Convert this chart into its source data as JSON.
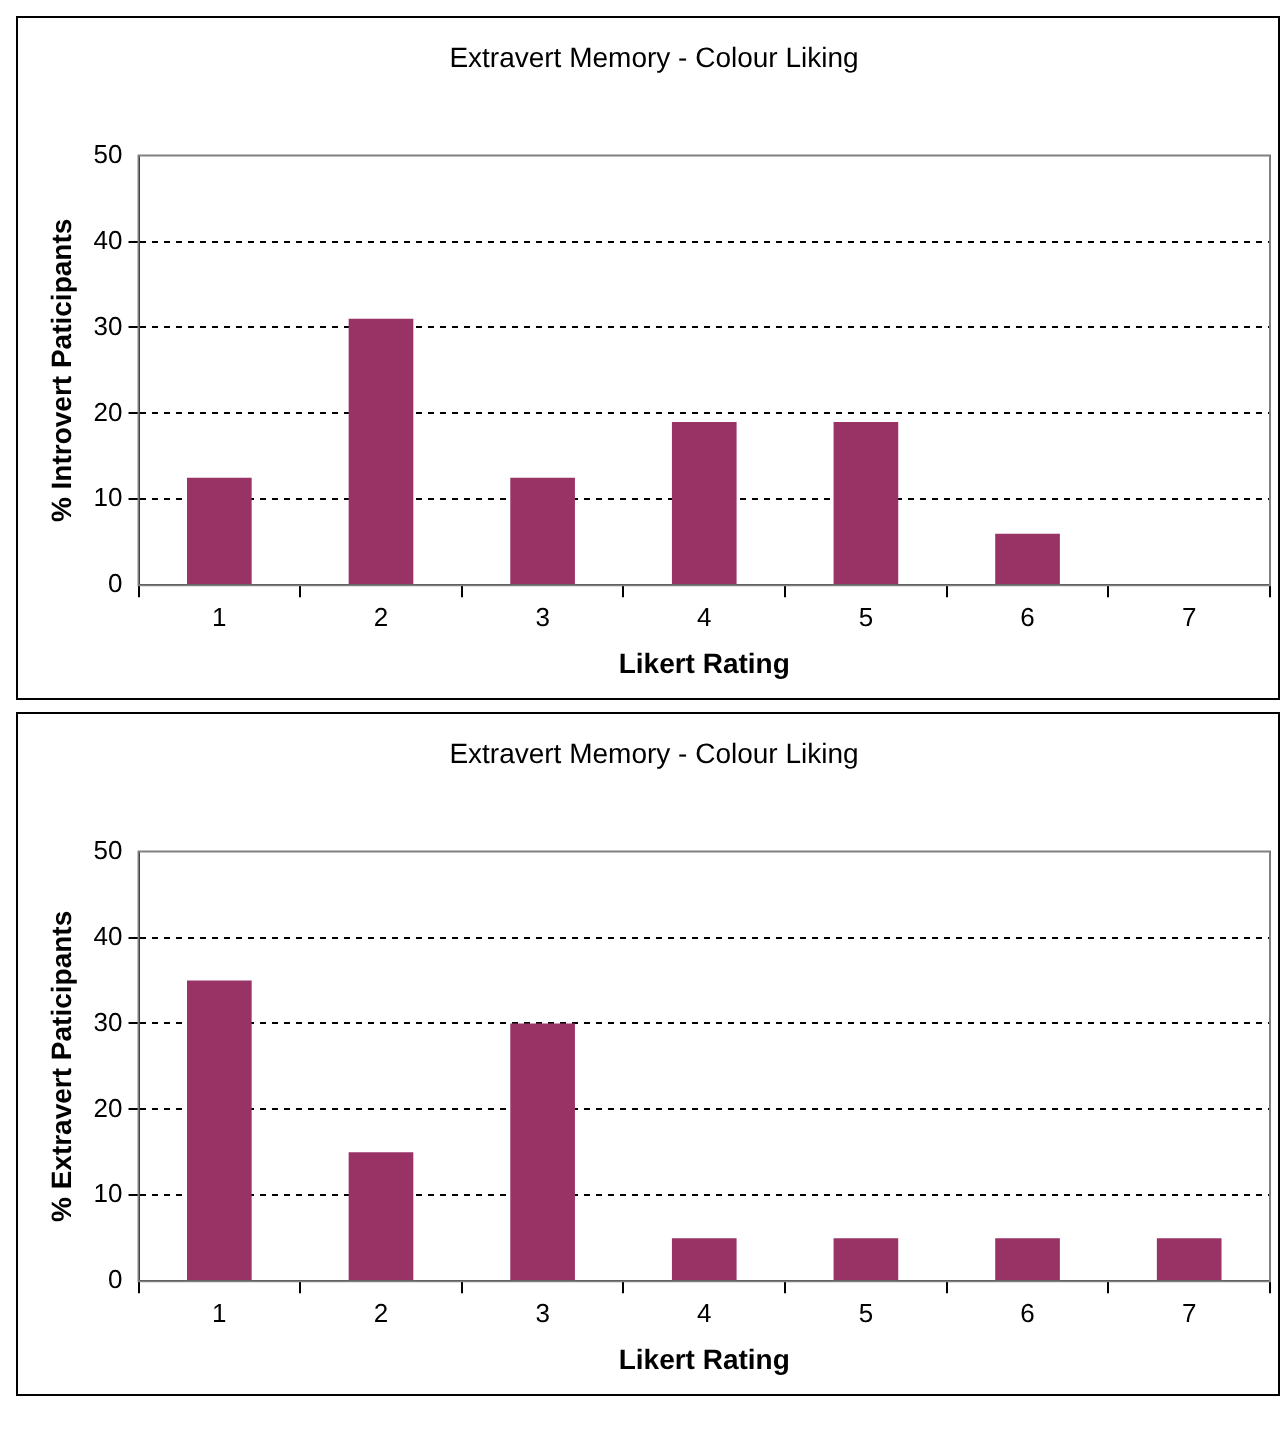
{
  "chart_data": [
    {
      "type": "bar",
      "title": "Extravert Memory - Colour Liking",
      "xlabel": "Likert Rating",
      "ylabel": "% Introvert Paticipants",
      "categories": [
        "1",
        "2",
        "3",
        "4",
        "5",
        "6",
        "7"
      ],
      "values": [
        12.5,
        31,
        12.5,
        19,
        19,
        6,
        0
      ],
      "color": "#993366",
      "ylim": [
        0,
        50
      ],
      "yticks": [
        0,
        10,
        20,
        30,
        40,
        50
      ],
      "grid": "y"
    },
    {
      "type": "bar",
      "title": "Extravert Memory - Colour Liking",
      "xlabel": "Likert Rating",
      "ylabel": "% Extravert Paticipants",
      "categories": [
        "1",
        "2",
        "3",
        "4",
        "5",
        "6",
        "7"
      ],
      "values": [
        35,
        15,
        30,
        5,
        5,
        5,
        5
      ],
      "color": "#993366",
      "ylim": [
        0,
        50
      ],
      "yticks": [
        0,
        10,
        20,
        30,
        40,
        50
      ],
      "grid": "y"
    }
  ]
}
